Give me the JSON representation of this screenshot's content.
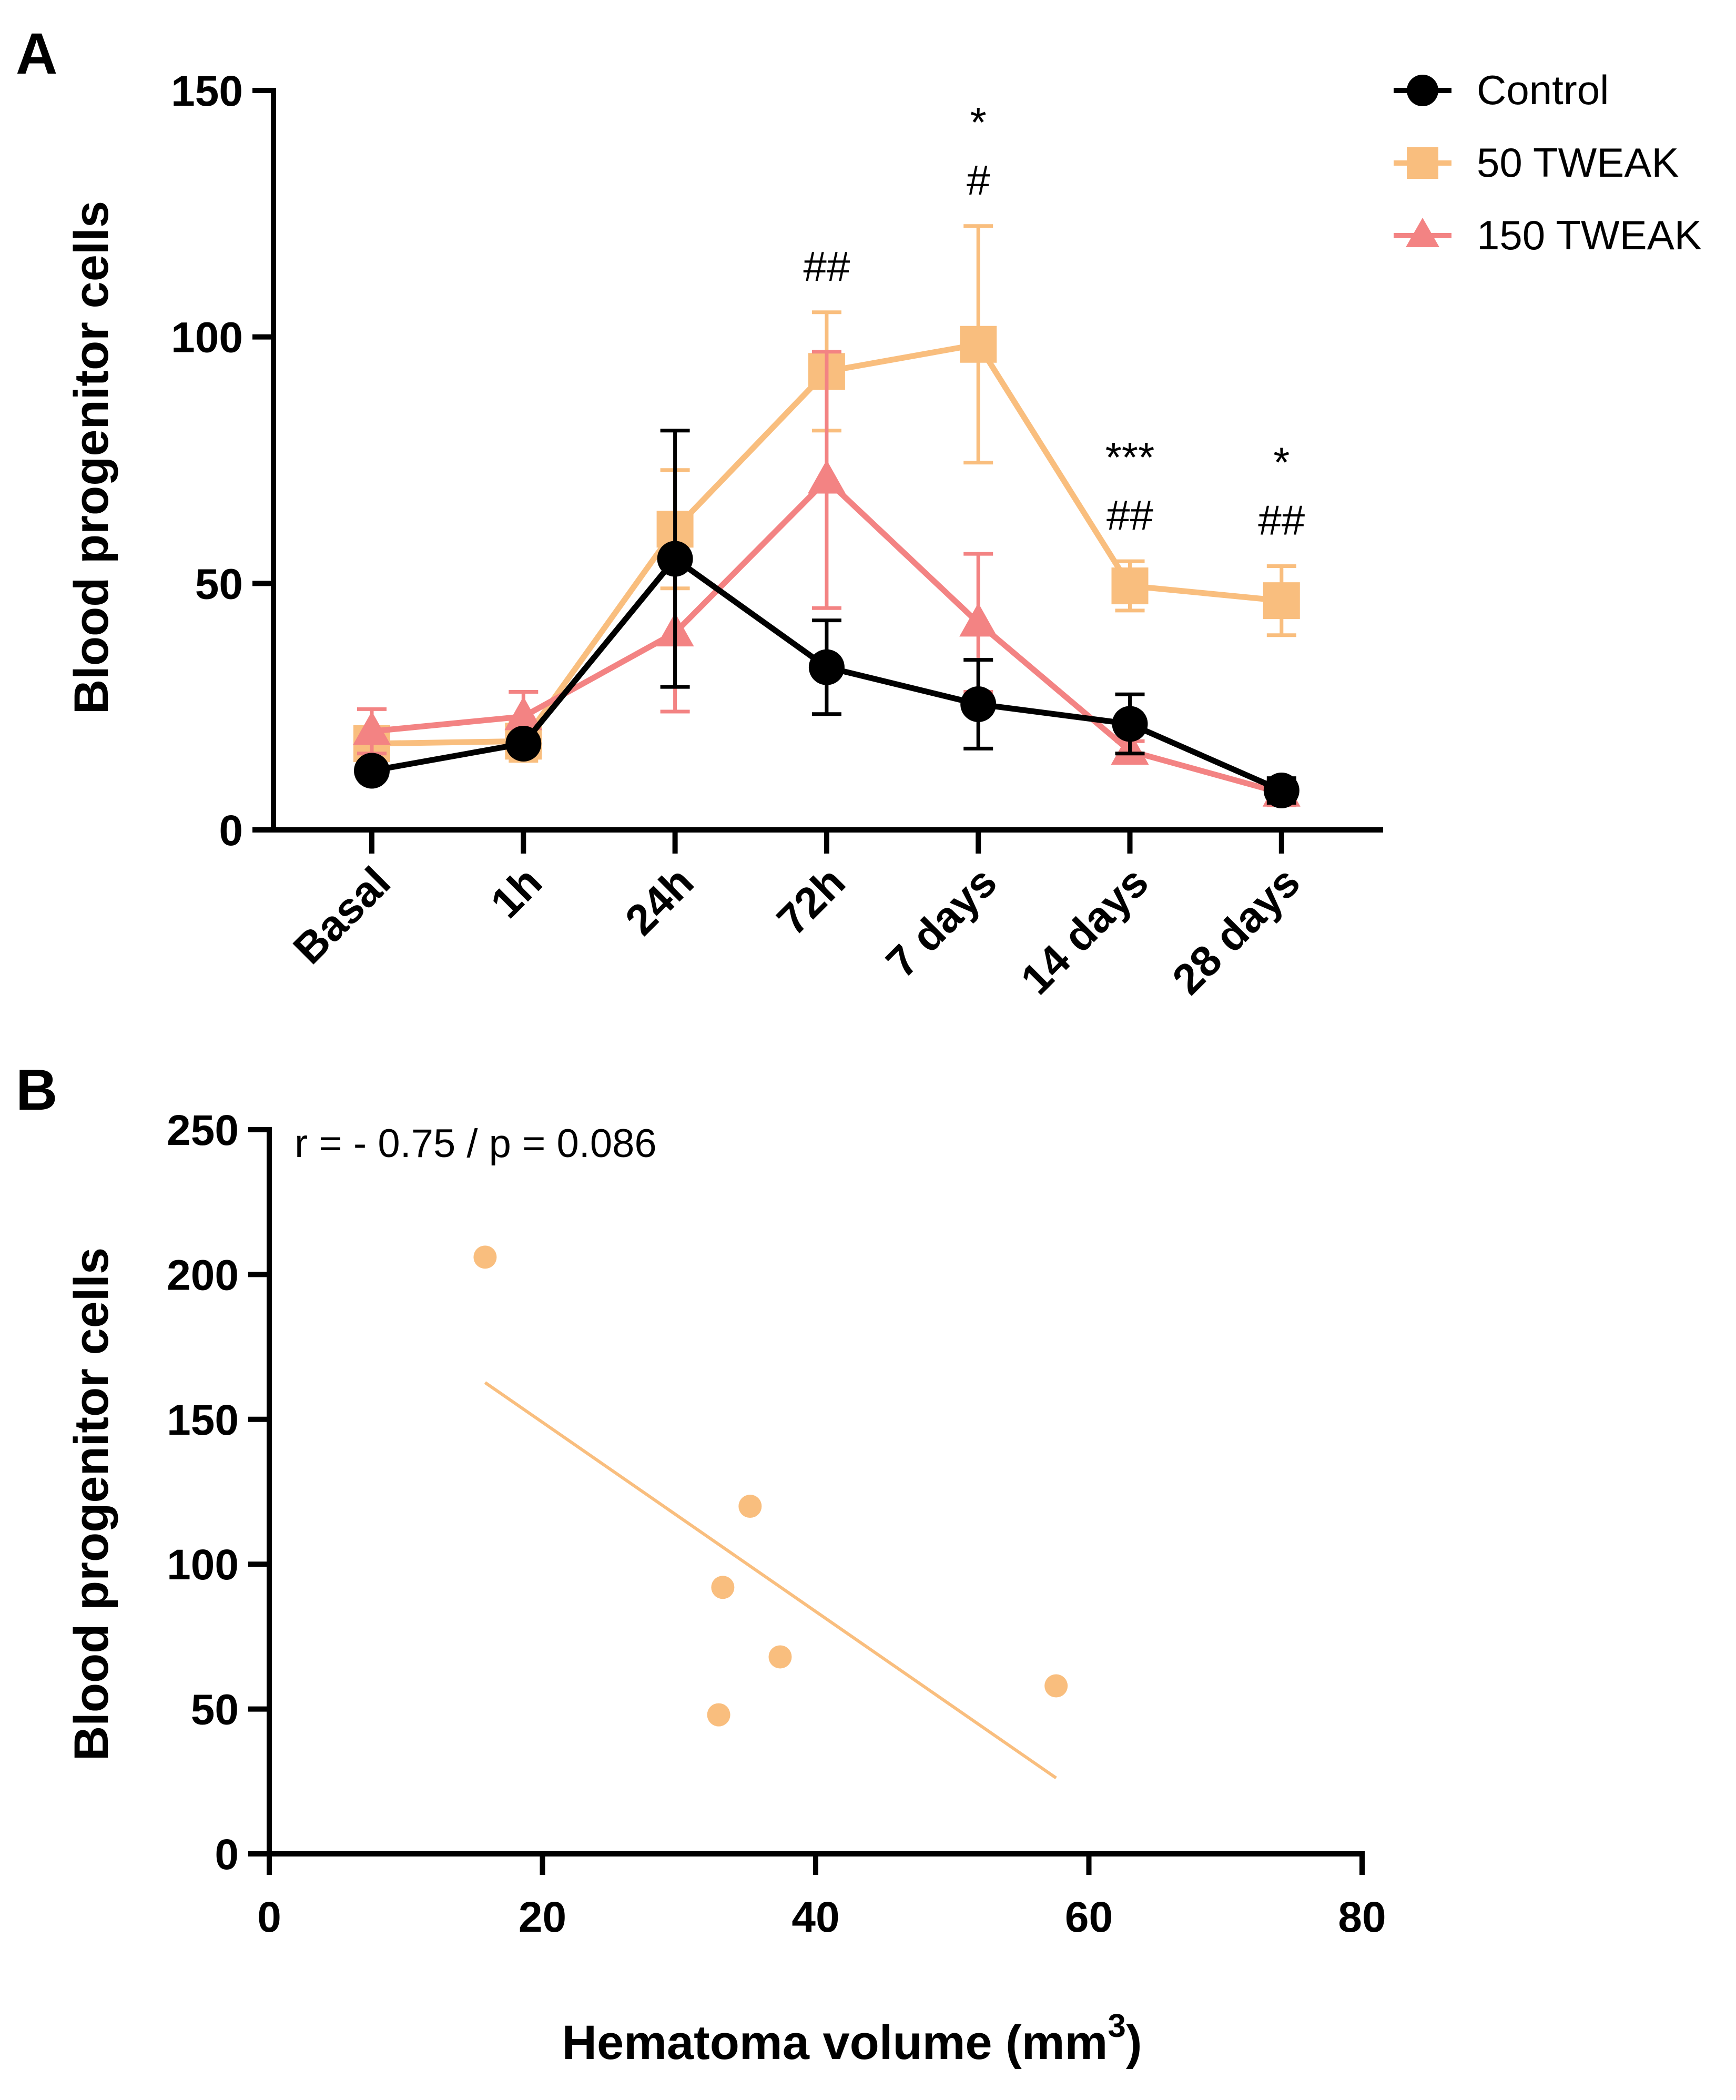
{
  "chart_data": [
    {
      "panel": "A",
      "type": "line",
      "ylabel": "Blood progenitor cells",
      "xlabel": "",
      "categories": [
        "Basal",
        "1h",
        "24h",
        "72h",
        "7 days",
        "14 days",
        "28 days"
      ],
      "ylim": [
        0,
        150
      ],
      "yticks": [
        0,
        50,
        100,
        150
      ],
      "series": [
        {
          "name": "Control",
          "marker": "circle",
          "color": "#000000",
          "values": [
            12,
            17.5,
            55,
            33,
            25.5,
            21.5,
            8
          ],
          "errors": [
            0,
            1.5,
            26,
            9.5,
            9,
            6,
            2.5
          ]
        },
        {
          "name": "50 TWEAK",
          "marker": "square",
          "color": "#F9BE7E",
          "values": [
            17.5,
            18,
            61,
            93,
            98.5,
            49.5,
            46.5
          ],
          "errors": [
            0,
            4,
            12,
            12,
            24,
            5,
            7
          ]
        },
        {
          "name": "150 TWEAK",
          "marker": "triangle",
          "color": "#F38383",
          "values": [
            20,
            23,
            40,
            71,
            42,
            16,
            7.5
          ],
          "errors": [
            4.5,
            5,
            16,
            26,
            14,
            2,
            2.5
          ]
        }
      ],
      "annotations": [
        {
          "category": "72h",
          "lines": [
            "##"
          ]
        },
        {
          "category": "7 days",
          "lines": [
            "*",
            "#"
          ]
        },
        {
          "category": "14 days",
          "lines": [
            "***",
            "##"
          ]
        },
        {
          "category": "28 days",
          "lines": [
            "*",
            "##"
          ]
        }
      ]
    },
    {
      "panel": "B",
      "type": "scatter",
      "ylabel": "Blood progenitor cells",
      "xlabel": "Hematoma volume (mm",
      "xlabel_sup": "3",
      "xlabel_end": ")",
      "xlim": [
        0,
        80
      ],
      "ylim": [
        0,
        250
      ],
      "xticks": [
        0,
        20,
        40,
        60,
        80
      ],
      "yticks": [
        0,
        50,
        100,
        150,
        200,
        250
      ],
      "stat_text": "r = - 0.75 / p = 0.086",
      "color": "#F9BE7E",
      "points": [
        {
          "x": 15.8,
          "y": 206
        },
        {
          "x": 35.2,
          "y": 120
        },
        {
          "x": 33.2,
          "y": 92
        },
        {
          "x": 37.4,
          "y": 68
        },
        {
          "x": 32.9,
          "y": 48
        },
        {
          "x": 57.6,
          "y": 58
        }
      ],
      "fit": {
        "x": [
          15.8,
          57.6
        ],
        "y": [
          162.7,
          26.2
        ]
      }
    }
  ]
}
